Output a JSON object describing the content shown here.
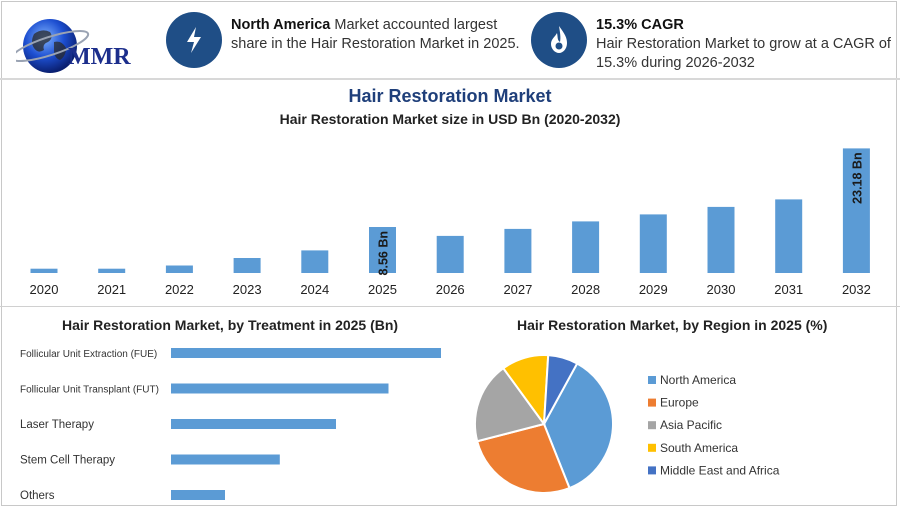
{
  "header": {
    "logo_text": "MMR",
    "info1": {
      "icon": "lightning-icon",
      "bold": "North America",
      "line1": " Market accounted largest",
      "line2": "share in the Hair Restoration Market in 2025."
    },
    "info2": {
      "icon": "flame-icon",
      "bold": "15.3% CAGR",
      "line1": "Hair Restoration Market to grow at a CAGR of",
      "line2": "15.3% during 2026-2032"
    }
  },
  "colors": {
    "accent": "#1f4e86",
    "bar": "#5b9bd5",
    "title": "#1f3f7a"
  },
  "chart_data": [
    {
      "type": "bar",
      "title": "Hair Restoration Market",
      "subtitle": "Hair Restoration Market size in USD Bn (2020-2032)",
      "categories": [
        "2020",
        "2021",
        "2022",
        "2023",
        "2024",
        "2025",
        "2026",
        "2027",
        "2028",
        "2029",
        "2030",
        "2031",
        "2032"
      ],
      "values": [
        0.8,
        0.8,
        1.4,
        2.8,
        4.2,
        8.56,
        6.9,
        8.2,
        9.6,
        10.9,
        12.3,
        13.7,
        23.18
      ],
      "data_labels": [
        {
          "category": "2025",
          "text": "8.56 Bn"
        },
        {
          "category": "2032",
          "text": "23.18 Bn"
        }
      ],
      "ylim": [
        0,
        24
      ]
    },
    {
      "type": "bar",
      "orientation": "horizontal",
      "title": "Hair Restoration Market, by Treatment in 2025 (Bn)",
      "categories": [
        "Follicular Unit Extraction (FUE)",
        "Follicular Unit Transplant (FUT)",
        "Laser Therapy",
        "Stem Cell Therapy",
        "Others"
      ],
      "values": [
        3.6,
        2.9,
        2.2,
        1.45,
        0.72
      ],
      "xlim": [
        0,
        4
      ]
    },
    {
      "type": "pie",
      "title": "Hair Restoration Market, by Region in 2025 (%)",
      "labels": [
        "North America",
        "Europe",
        "Asia Pacific",
        "South America",
        "Middle East and Africa"
      ],
      "values": [
        36,
        27,
        19,
        11,
        7
      ],
      "colors": [
        "#5b9bd5",
        "#ed7d31",
        "#a5a5a5",
        "#ffc000",
        "#4472c4"
      ],
      "legend": "right"
    }
  ]
}
